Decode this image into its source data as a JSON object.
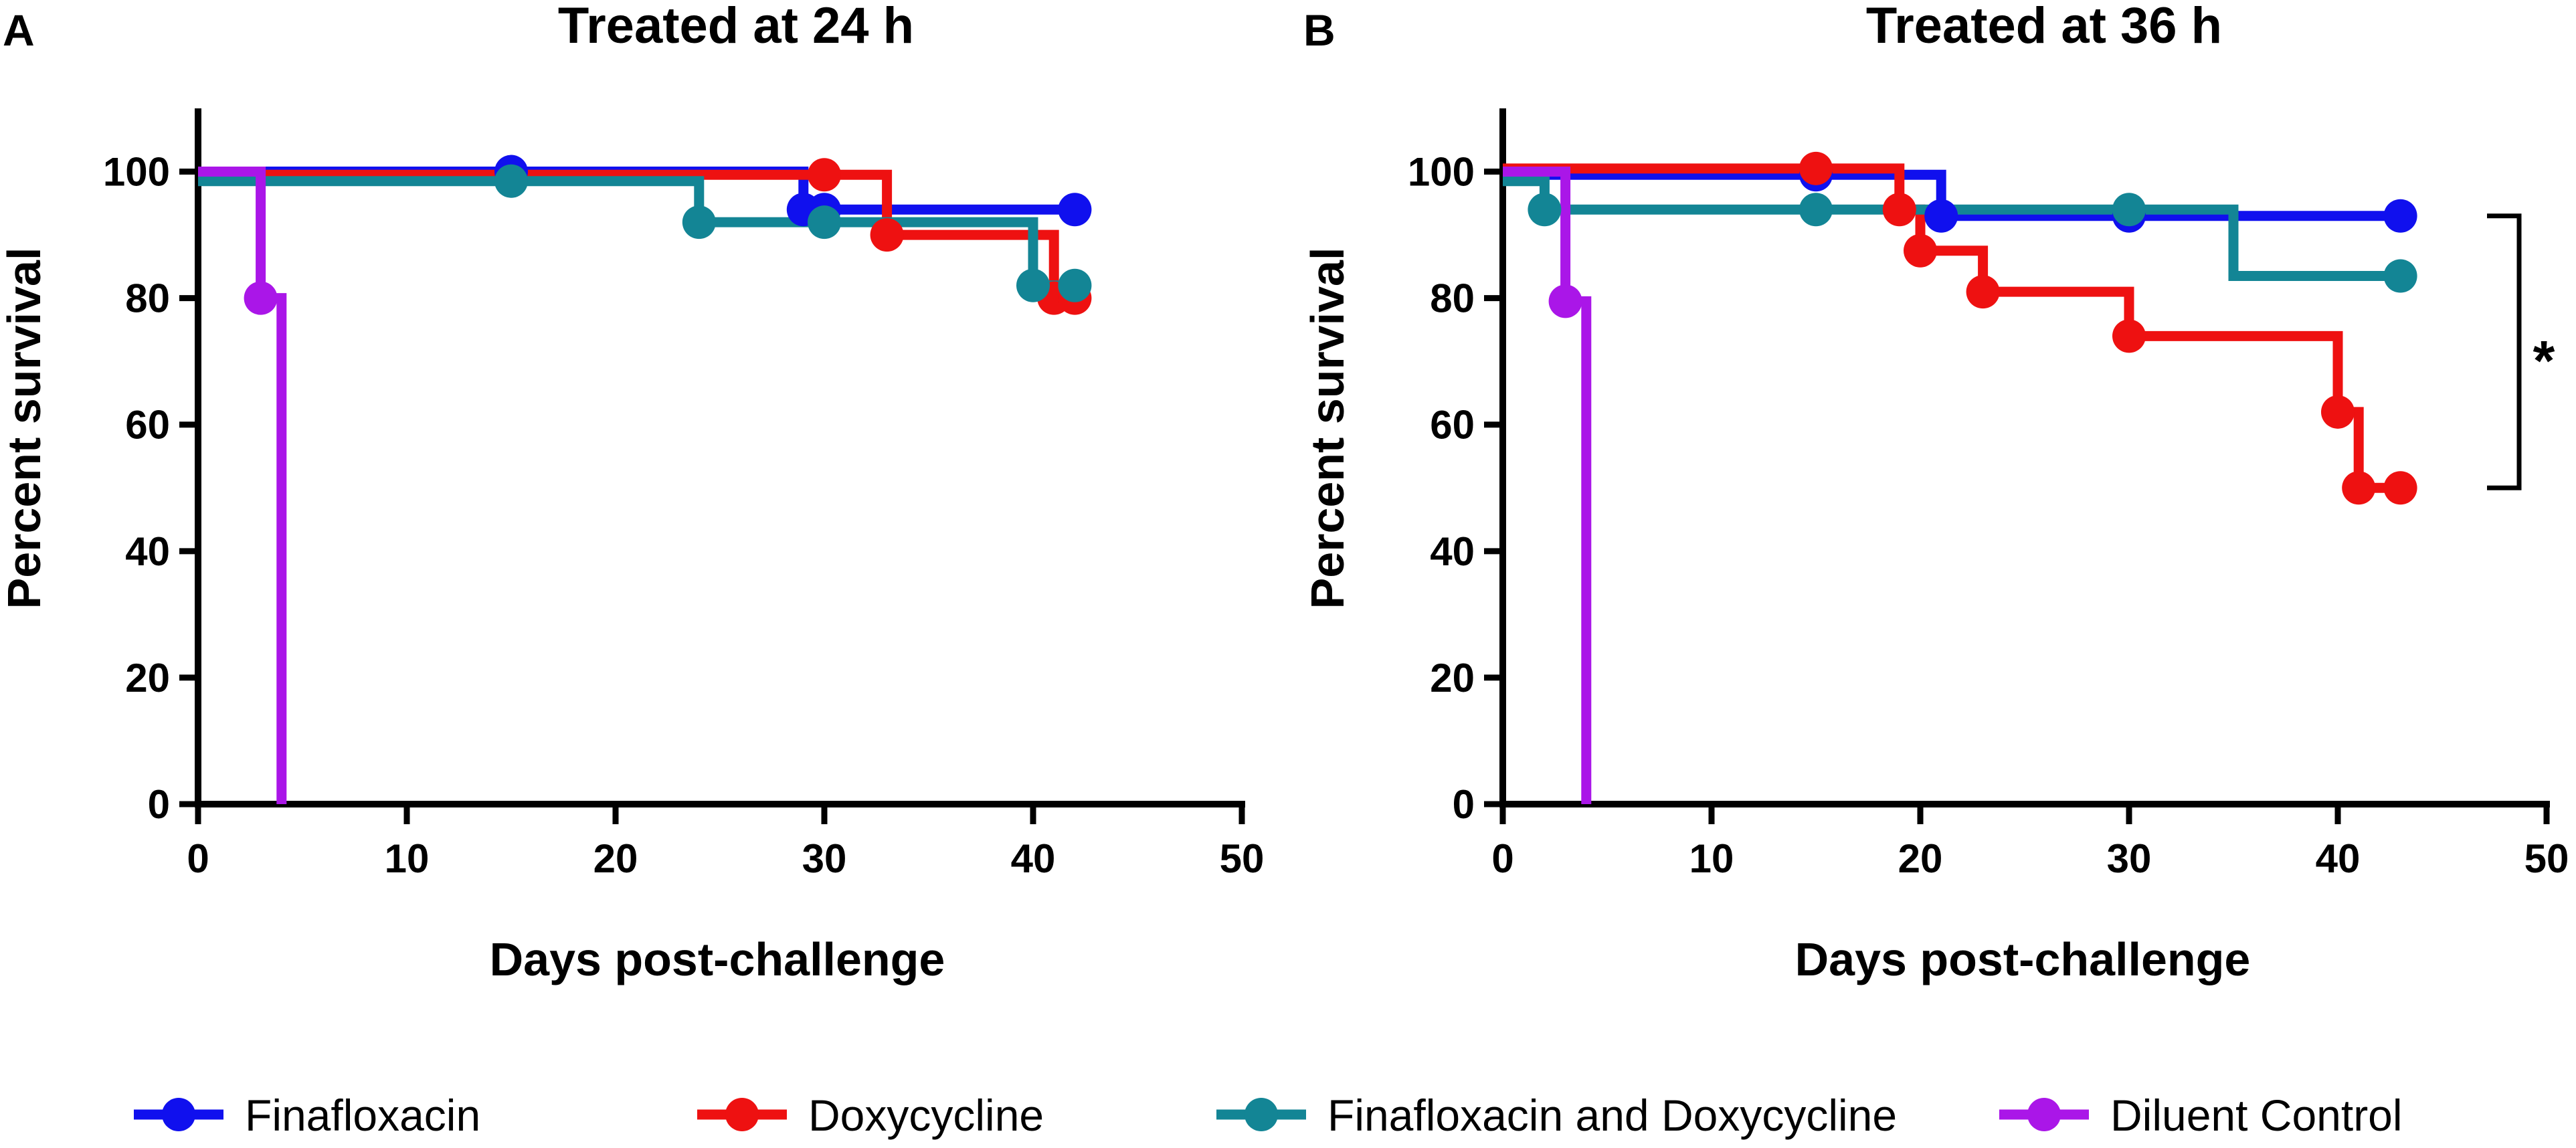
{
  "colors": {
    "Finafloxacin": "#1010ee",
    "Doxycycline": "#ee1111",
    "Finafloxacin and Doxycycline": "#138595",
    "Diluent Control": "#aa16e8"
  },
  "legend": [
    {
      "name": "Finafloxacin"
    },
    {
      "name": "Doxycycline"
    },
    {
      "name": "Finafloxacin and Doxycycline"
    },
    {
      "name": "Diluent Control"
    }
  ],
  "chart_data": [
    {
      "panel": "A",
      "title": "Treated at 24 h",
      "type": "line",
      "xlabel": "Days post-challenge",
      "ylabel": "Percent survival",
      "xlim": [
        0,
        50
      ],
      "ylim": [
        0,
        110
      ],
      "xticks": [
        0,
        10,
        20,
        30,
        40,
        50
      ],
      "yticks": [
        0,
        20,
        40,
        60,
        80,
        100
      ],
      "series": [
        {
          "name": "Finafloxacin",
          "steps": [
            [
              0,
              100
            ],
            [
              15,
              100
            ],
            [
              29,
              94
            ],
            [
              30,
              94
            ],
            [
              42,
              94
            ]
          ],
          "markers": [
            [
              15,
              100
            ],
            [
              29,
              94
            ],
            [
              30,
              94
            ],
            [
              42,
              94
            ]
          ]
        },
        {
          "name": "Doxycycline",
          "steps": [
            [
              0,
              99.5
            ],
            [
              30,
              99.5
            ],
            [
              33,
              90
            ],
            [
              41,
              80
            ],
            [
              42,
              80
            ]
          ],
          "markers": [
            [
              30,
              99.5
            ],
            [
              33,
              90
            ],
            [
              41,
              80
            ],
            [
              42,
              80
            ]
          ]
        },
        {
          "name": "Finafloxacin and Doxycycline",
          "steps": [
            [
              0,
              98.5
            ],
            [
              15,
              98.5
            ],
            [
              24,
              92
            ],
            [
              30,
              92
            ],
            [
              40,
              82
            ],
            [
              42,
              82
            ]
          ],
          "markers": [
            [
              15,
              98.5
            ],
            [
              24,
              92
            ],
            [
              30,
              92
            ],
            [
              40,
              82
            ],
            [
              42,
              82
            ]
          ]
        },
        {
          "name": "Diluent Control",
          "steps": [
            [
              0,
              100
            ],
            [
              3,
              80
            ],
            [
              4,
              0
            ]
          ],
          "markers": [
            [
              3,
              80
            ]
          ]
        }
      ]
    },
    {
      "panel": "B",
      "title": "Treated at 36 h",
      "type": "line",
      "xlabel": "Days post-challenge",
      "ylabel": "Percent survival",
      "xlim": [
        0,
        50
      ],
      "ylim": [
        0,
        110
      ],
      "xticks": [
        0,
        10,
        20,
        30,
        40,
        50
      ],
      "yticks": [
        0,
        20,
        40,
        60,
        80,
        100
      ],
      "significance": {
        "label": "*",
        "between": [
          93,
          50
        ]
      },
      "series": [
        {
          "name": "Finafloxacin",
          "steps": [
            [
              0,
              99.5
            ],
            [
              15,
              99.5
            ],
            [
              21,
              93
            ],
            [
              30,
              93
            ],
            [
              43,
              93
            ]
          ],
          "markers": [
            [
              15,
              99.5
            ],
            [
              21,
              93
            ],
            [
              30,
              93
            ],
            [
              43,
              93
            ]
          ]
        },
        {
          "name": "Doxycycline",
          "steps": [
            [
              0,
              100.5
            ],
            [
              15,
              100.5
            ],
            [
              19,
              94
            ],
            [
              20,
              87.5
            ],
            [
              23,
              81
            ],
            [
              30,
              74
            ],
            [
              40,
              62
            ],
            [
              41,
              50
            ],
            [
              43,
              50
            ]
          ],
          "markers": [
            [
              15,
              100.5
            ],
            [
              19,
              94
            ],
            [
              20,
              87.5
            ],
            [
              23,
              81
            ],
            [
              30,
              74
            ],
            [
              40,
              62
            ],
            [
              41,
              50
            ],
            [
              43,
              50
            ]
          ]
        },
        {
          "name": "Finafloxacin and Doxycycline",
          "steps": [
            [
              0,
              98.5
            ],
            [
              2,
              94
            ],
            [
              15,
              94
            ],
            [
              30,
              94
            ],
            [
              35,
              83.5
            ],
            [
              43,
              83.5
            ]
          ],
          "markers": [
            [
              2,
              94
            ],
            [
              15,
              94
            ],
            [
              30,
              94
            ],
            [
              43,
              83.5
            ]
          ]
        },
        {
          "name": "Diluent Control",
          "steps": [
            [
              0,
              100
            ],
            [
              3,
              79.5
            ],
            [
              4,
              0
            ]
          ],
          "markers": [
            [
              3,
              79.5
            ]
          ]
        }
      ]
    }
  ]
}
